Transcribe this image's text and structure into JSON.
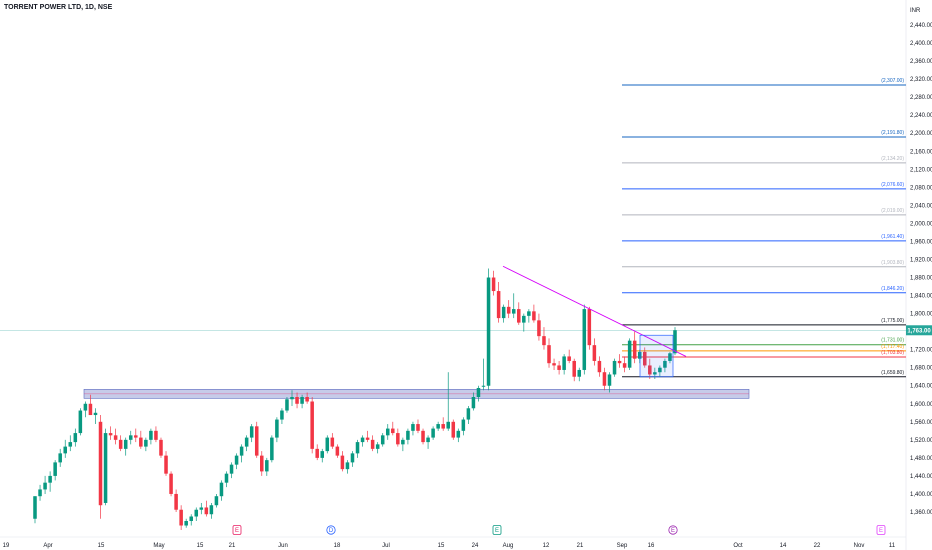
{
  "header": {
    "title": "TORRENT POWER LTD, 1D, NSE",
    "currency": "INR"
  },
  "chart_data": {
    "type": "candlestick",
    "y_axis": {
      "ticks": [
        "2,440.00",
        "2,400.00",
        "2,360.00",
        "2,320.00",
        "2,280.00",
        "2,240.00",
        "2,200.00",
        "2,160.00",
        "2,120.00",
        "2,080.00",
        "2,040.00",
        "2,000.00",
        "1,960.00",
        "1,920.00",
        "1,880.00",
        "1,840.00",
        "1,800.00",
        "1,760.00",
        "1,720.00",
        "1,680.00",
        "1,640.00",
        "1,600.00",
        "1,560.00",
        "1,520.00",
        "1,480.00",
        "1,440.00",
        "1,400.00",
        "1,360.00"
      ],
      "range": [
        1340,
        2480
      ]
    },
    "x_axis": {
      "ticks": [
        "19",
        "Apr",
        "15",
        "May",
        "15",
        "21",
        "Jun",
        "18",
        "Jul",
        "15",
        "24",
        "Aug",
        "12",
        "21",
        "Sep",
        "16",
        "Oct",
        "14",
        "22",
        "Nov",
        "11"
      ]
    },
    "current_price": {
      "label": "1,763.00",
      "value": 1763,
      "color": "#26a69a"
    },
    "fib_levels": [
      {
        "value": 2307.0,
        "label": "(2,307.00)",
        "color": "#1565c0"
      },
      {
        "value": 2191.8,
        "label": "(2,191.80)",
        "color": "#1565c0"
      },
      {
        "value": 2134.2,
        "label": "(2,134.20)",
        "color": "#b2b5be"
      },
      {
        "value": 2076.6,
        "label": "(2,076.60)",
        "color": "#2962ff"
      },
      {
        "value": 2019.0,
        "label": "(2,019.00)",
        "color": "#b2b5be"
      },
      {
        "value": 1961.4,
        "label": "(1,961.40)",
        "color": "#2962ff"
      },
      {
        "value": 1903.8,
        "label": "(1,903.80)",
        "color": "#b2b5be"
      },
      {
        "value": 1846.2,
        "label": "(1,846.20)",
        "color": "#2962ff"
      },
      {
        "value": 1775.0,
        "label": "(1,775.00)",
        "color": "#131722"
      },
      {
        "value": 1731.0,
        "label": "(1,731.00)",
        "color": "#43a047"
      },
      {
        "value": 1717.4,
        "label": "(1,717.40)",
        "color": "#ff9800"
      },
      {
        "value": 1703.8,
        "label": "(1,703.80)",
        "color": "#f23645"
      },
      {
        "value": 1659.8,
        "label": "(1,659.80)",
        "color": "#131722"
      }
    ],
    "support_zone": {
      "low": 1612,
      "high": 1632,
      "color": "#5c6bc0"
    },
    "events": [
      {
        "letter": "E",
        "color": "#e91e63"
      },
      {
        "letter": "D",
        "color": "#2962ff"
      },
      {
        "letter": "E",
        "color": "#089981"
      },
      {
        "letter": "E",
        "color": "#9c27b0"
      },
      {
        "letter": "E",
        "color": "#e040fb"
      }
    ],
    "candles": [
      [
        1345,
        1395,
        1335,
        1395
      ],
      [
        1395,
        1420,
        1385,
        1410
      ],
      [
        1410,
        1440,
        1400,
        1425
      ],
      [
        1425,
        1450,
        1405,
        1440
      ],
      [
        1440,
        1475,
        1430,
        1470
      ],
      [
        1470,
        1500,
        1460,
        1490
      ],
      [
        1490,
        1520,
        1480,
        1505
      ],
      [
        1505,
        1530,
        1495,
        1515
      ],
      [
        1515,
        1545,
        1505,
        1535
      ],
      [
        1535,
        1590,
        1530,
        1585
      ],
      [
        1585,
        1605,
        1570,
        1600
      ],
      [
        1600,
        1620,
        1575,
        1575
      ],
      [
        1575,
        1590,
        1555,
        1580
      ],
      [
        1560,
        1575,
        1345,
        1375
      ],
      [
        1380,
        1545,
        1375,
        1535
      ],
      [
        1535,
        1550,
        1520,
        1530
      ],
      [
        1530,
        1545,
        1510,
        1520
      ],
      [
        1520,
        1530,
        1495,
        1500
      ],
      [
        1500,
        1525,
        1485,
        1520
      ],
      [
        1520,
        1540,
        1510,
        1530
      ],
      [
        1530,
        1545,
        1515,
        1525
      ],
      [
        1525,
        1540,
        1500,
        1505
      ],
      [
        1505,
        1525,
        1495,
        1520
      ],
      [
        1520,
        1545,
        1510,
        1540
      ],
      [
        1540,
        1550,
        1515,
        1520
      ],
      [
        1520,
        1525,
        1480,
        1485
      ],
      [
        1485,
        1495,
        1440,
        1445
      ],
      [
        1445,
        1450,
        1395,
        1400
      ],
      [
        1400,
        1410,
        1360,
        1365
      ],
      [
        1365,
        1375,
        1320,
        1330
      ],
      [
        1330,
        1345,
        1325,
        1340
      ],
      [
        1340,
        1355,
        1330,
        1350
      ],
      [
        1350,
        1370,
        1340,
        1365
      ],
      [
        1365,
        1380,
        1355,
        1370
      ],
      [
        1370,
        1385,
        1350,
        1355
      ],
      [
        1355,
        1380,
        1345,
        1375
      ],
      [
        1375,
        1400,
        1370,
        1395
      ],
      [
        1395,
        1430,
        1385,
        1425
      ],
      [
        1425,
        1450,
        1415,
        1445
      ],
      [
        1445,
        1470,
        1435,
        1465
      ],
      [
        1465,
        1490,
        1455,
        1485
      ],
      [
        1485,
        1510,
        1470,
        1505
      ],
      [
        1505,
        1530,
        1495,
        1525
      ],
      [
        1525,
        1555,
        1515,
        1550
      ],
      [
        1550,
        1560,
        1480,
        1485
      ],
      [
        1485,
        1495,
        1440,
        1450
      ],
      [
        1450,
        1480,
        1440,
        1475
      ],
      [
        1475,
        1530,
        1470,
        1525
      ],
      [
        1525,
        1570,
        1515,
        1565
      ],
      [
        1565,
        1590,
        1555,
        1585
      ],
      [
        1585,
        1615,
        1580,
        1610
      ],
      [
        1610,
        1630,
        1595,
        1615
      ],
      [
        1615,
        1625,
        1590,
        1600
      ],
      [
        1600,
        1620,
        1590,
        1615
      ],
      [
        1615,
        1625,
        1600,
        1605
      ],
      [
        1605,
        1615,
        1490,
        1500
      ],
      [
        1500,
        1510,
        1475,
        1480
      ],
      [
        1480,
        1500,
        1470,
        1495
      ],
      [
        1495,
        1530,
        1490,
        1525
      ],
      [
        1525,
        1535,
        1500,
        1505
      ],
      [
        1505,
        1510,
        1480,
        1485
      ],
      [
        1485,
        1495,
        1450,
        1455
      ],
      [
        1455,
        1475,
        1445,
        1470
      ],
      [
        1470,
        1495,
        1460,
        1490
      ],
      [
        1490,
        1520,
        1480,
        1515
      ],
      [
        1515,
        1530,
        1505,
        1525
      ],
      [
        1525,
        1540,
        1515,
        1520
      ],
      [
        1520,
        1530,
        1495,
        1500
      ],
      [
        1500,
        1515,
        1490,
        1510
      ],
      [
        1510,
        1535,
        1505,
        1530
      ],
      [
        1530,
        1555,
        1520,
        1545
      ],
      [
        1545,
        1560,
        1530,
        1535
      ],
      [
        1535,
        1545,
        1505,
        1510
      ],
      [
        1510,
        1525,
        1495,
        1520
      ],
      [
        1520,
        1545,
        1510,
        1540
      ],
      [
        1540,
        1560,
        1530,
        1555
      ],
      [
        1555,
        1565,
        1535,
        1540
      ],
      [
        1540,
        1545,
        1510,
        1515
      ],
      [
        1515,
        1530,
        1500,
        1525
      ],
      [
        1525,
        1550,
        1520,
        1545
      ],
      [
        1545,
        1560,
        1540,
        1555
      ],
      [
        1555,
        1570,
        1540,
        1545
      ],
      [
        1545,
        1670,
        1540,
        1560
      ],
      [
        1560,
        1565,
        1520,
        1525
      ],
      [
        1525,
        1545,
        1515,
        1540
      ],
      [
        1540,
        1570,
        1530,
        1565
      ],
      [
        1565,
        1595,
        1555,
        1590
      ],
      [
        1590,
        1625,
        1585,
        1615
      ],
      [
        1615,
        1640,
        1605,
        1635
      ],
      [
        1640,
        1700,
        1630,
        1640
      ],
      [
        1640,
        1900,
        1630,
        1880
      ],
      [
        1880,
        1895,
        1840,
        1850
      ],
      [
        1850,
        1870,
        1780,
        1790
      ],
      [
        1790,
        1820,
        1780,
        1815
      ],
      [
        1815,
        1830,
        1790,
        1800
      ],
      [
        1800,
        1845,
        1790,
        1810
      ],
      [
        1810,
        1825,
        1775,
        1780
      ],
      [
        1780,
        1800,
        1760,
        1795
      ],
      [
        1795,
        1810,
        1780,
        1805
      ],
      [
        1805,
        1820,
        1780,
        1785
      ],
      [
        1785,
        1800,
        1740,
        1750
      ],
      [
        1750,
        1770,
        1720,
        1730
      ],
      [
        1730,
        1745,
        1680,
        1690
      ],
      [
        1690,
        1700,
        1675,
        1685
      ],
      [
        1685,
        1695,
        1665,
        1675
      ],
      [
        1675,
        1710,
        1665,
        1705
      ],
      [
        1705,
        1720,
        1690,
        1695
      ],
      [
        1695,
        1700,
        1650,
        1660
      ],
      [
        1660,
        1680,
        1650,
        1675
      ],
      [
        1675,
        1820,
        1665,
        1810
      ],
      [
        1810,
        1815,
        1720,
        1730
      ],
      [
        1730,
        1745,
        1685,
        1695
      ],
      [
        1695,
        1705,
        1660,
        1670
      ],
      [
        1670,
        1680,
        1630,
        1640
      ],
      [
        1640,
        1670,
        1625,
        1665
      ],
      [
        1665,
        1700,
        1660,
        1695
      ],
      [
        1695,
        1710,
        1680,
        1690
      ],
      [
        1690,
        1705,
        1670,
        1680
      ],
      [
        1680,
        1745,
        1675,
        1740
      ],
      [
        1740,
        1760,
        1690,
        1700
      ],
      [
        1700,
        1720,
        1690,
        1715
      ],
      [
        1715,
        1725,
        1680,
        1685
      ],
      [
        1685,
        1700,
        1655,
        1665
      ],
      [
        1665,
        1680,
        1655,
        1670
      ],
      [
        1670,
        1685,
        1660,
        1680
      ],
      [
        1680,
        1700,
        1670,
        1695
      ],
      [
        1695,
        1715,
        1690,
        1712
      ],
      [
        1712,
        1770,
        1708,
        1763
      ]
    ]
  }
}
